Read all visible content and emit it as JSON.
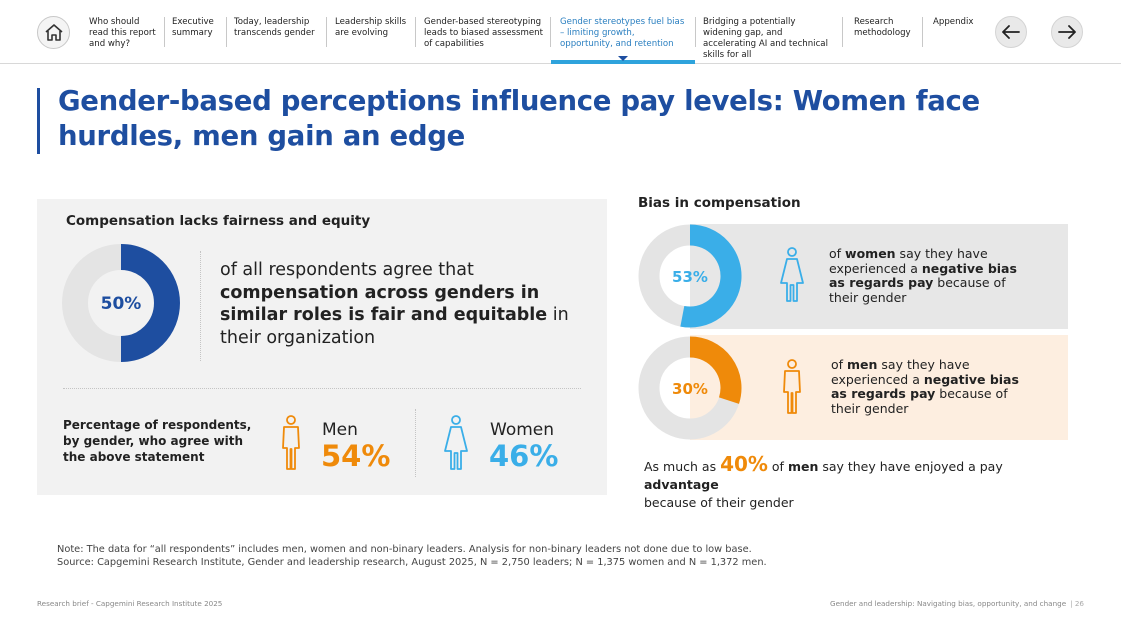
{
  "nav": {
    "items": [
      "Who should read this report and why?",
      "Executive summary",
      "Today, leadership transcends gender",
      "Leadership skills are evolving",
      "Gender-based stereotyping leads to biased assessment of capabilities",
      "Gender stereotypes fuel bias – limiting growth, opportunity, and retention",
      "Bridging a potentially widening gap, and accelerating AI and technical skills for all",
      "Research methodology",
      "Appendix"
    ],
    "active_index": 5
  },
  "title": "Gender-based perceptions influence pay levels: Women face hurdles, men gain an edge",
  "left_panel": {
    "heading": "Compensation lacks fairness and equity",
    "donut_label": "50%",
    "statement_pre": "of all respondents agree that ",
    "statement_bold1": "compensation across genders in similar roles is fair and equitable",
    "statement_post": " in their organization",
    "gender_label": "Percentage of respondents, by gender, who agree with the above statement",
    "men_label": "Men",
    "men_value": "54%",
    "women_label": "Women",
    "women_value": "46%"
  },
  "right_panel": {
    "heading": "Bias in compensation",
    "women_donut_label": "53%",
    "women_text_1": "of ",
    "women_text_b1": "women",
    "women_text_2": " say they have experienced a ",
    "women_text_b2": "negative bias as regards pay",
    "women_text_3": " because of their gender",
    "men_donut_label": "30%",
    "men_text_1": "of ",
    "men_text_b1": "men",
    "men_text_2": " say they have experienced a ",
    "men_text_b2": "negative bias as regards pay",
    "men_text_3": " because of their gender",
    "adv_1": "As much as ",
    "adv_big": "40%",
    "adv_2": " of ",
    "adv_b1": "men",
    "adv_3": " say they have enjoyed a pay ",
    "adv_b2": "advantage",
    "adv_4": " because of their gender"
  },
  "notes": {
    "line1": "Note: The data for “all respondents” includes men, women and non-binary leaders. Analysis for non-binary leaders not done due to low base.",
    "line2": "Source: Capgemini Research Institute, Gender and leadership research, August 2025, N = 2,750 leaders; N = 1,375 women and N = 1,372 men."
  },
  "footer": {
    "left": "Research brief - Capgemini Research Institute 2025",
    "right": "Gender and leadership: Navigating bias, opportunity, and change",
    "page": "| 26"
  },
  "colors": {
    "navy": "#1e4ea0",
    "sky": "#3aaee8",
    "orange": "#ef8a0a",
    "ring_bg": "#e4e4e4"
  },
  "chart_data": [
    {
      "type": "pie",
      "title": "Compensation lacks fairness and equity",
      "categories": [
        "Agree compensation is fair and equitable",
        "Other"
      ],
      "values": [
        50,
        50
      ]
    },
    {
      "type": "pie",
      "title": "Bias in compensation – women",
      "categories": [
        "Women experienced negative pay bias",
        "Other"
      ],
      "values": [
        53,
        47
      ]
    },
    {
      "type": "pie",
      "title": "Bias in compensation – men",
      "categories": [
        "Men experienced negative pay bias",
        "Other"
      ],
      "values": [
        30,
        70
      ]
    },
    {
      "type": "bar",
      "title": "Percentage of respondents, by gender, who agree with the above statement",
      "categories": [
        "Men",
        "Women"
      ],
      "values": [
        54,
        46
      ]
    }
  ]
}
